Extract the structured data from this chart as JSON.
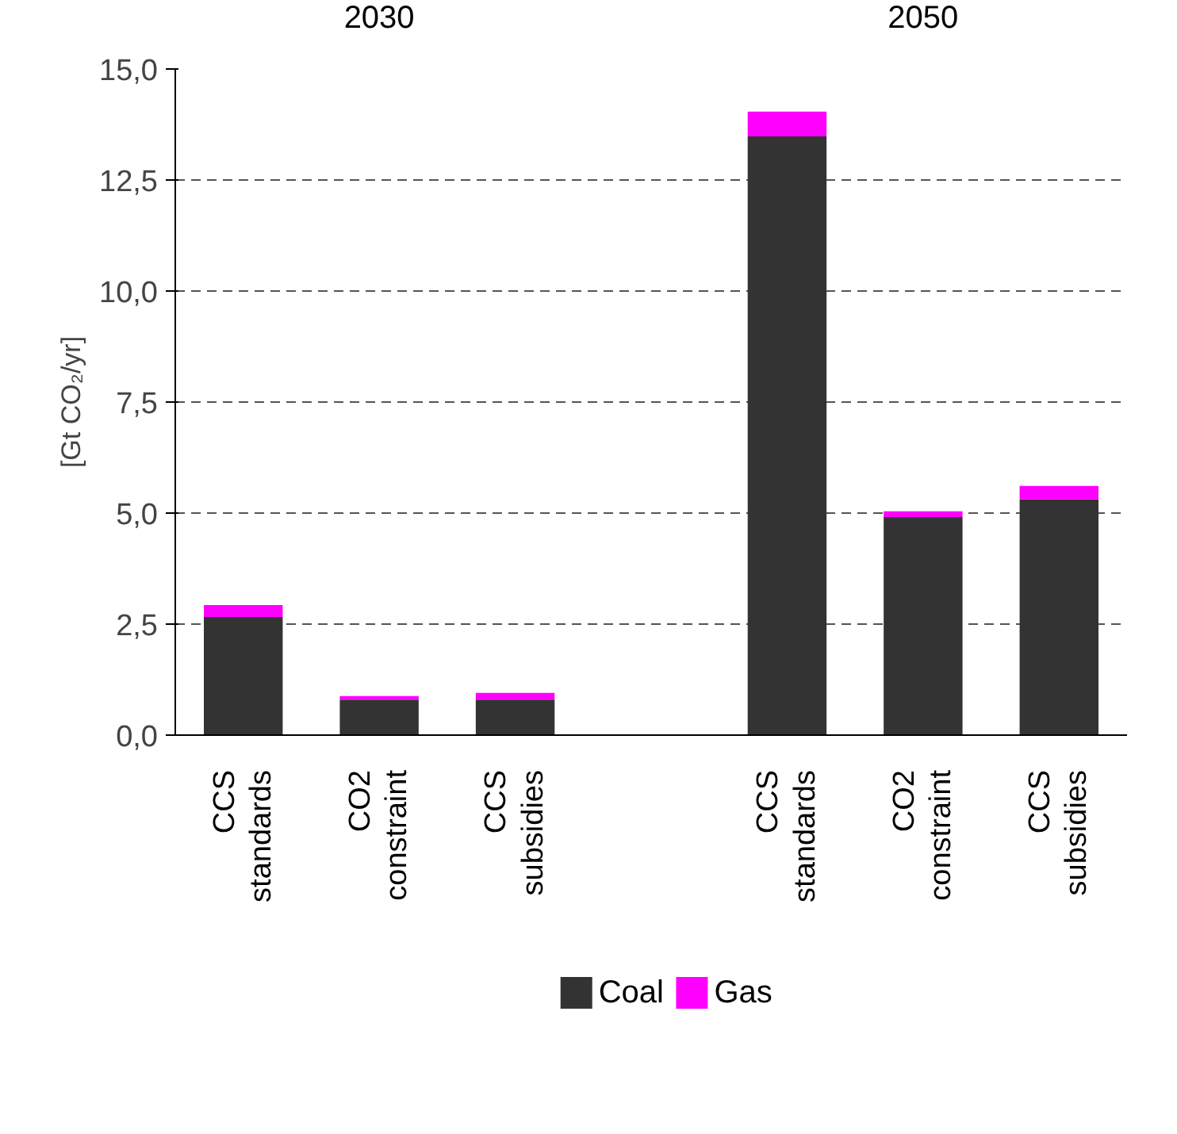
{
  "chart_data": {
    "type": "bar",
    "stacked": true,
    "ylabel": "[Gt CO₂/yr]",
    "annotations": [
      "2030",
      "2050"
    ],
    "categories": [
      "CCS standards",
      "CO2 constraint",
      "CCS subsidies",
      null,
      "CCS standards",
      "CO2 constraint",
      "CCS subsidies"
    ],
    "series": [
      {
        "name": "Coal",
        "color": "#333333",
        "values": [
          2.66,
          0.8,
          0.8,
          null,
          13.48,
          4.91,
          5.31
        ]
      },
      {
        "name": "Gas",
        "color": "#ff00ff",
        "values": [
          0.27,
          0.08,
          0.15,
          null,
          0.56,
          0.13,
          0.3
        ]
      }
    ],
    "ylim": [
      0,
      15
    ],
    "yticks": [
      {
        "value": 0,
        "label": "0,0"
      },
      {
        "value": 2.5,
        "label": "2,5"
      },
      {
        "value": 5,
        "label": "5,0"
      },
      {
        "value": 7.5,
        "label": "7,5"
      },
      {
        "value": 10,
        "label": "10,0"
      },
      {
        "value": 12.5,
        "label": "12,5"
      },
      {
        "value": 15,
        "label": "15,0"
      }
    ],
    "grid": "y",
    "legend": "bottom"
  }
}
